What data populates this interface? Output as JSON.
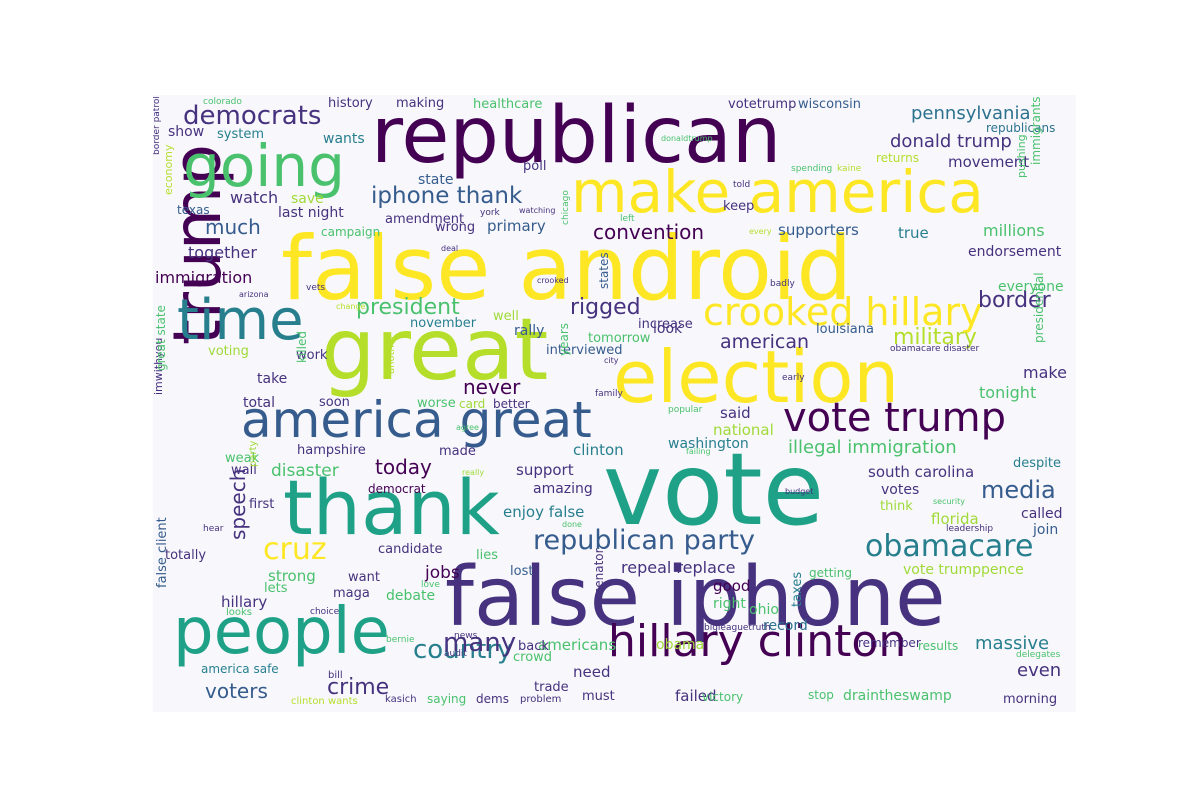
{
  "cloud": {
    "colors": [
      "#440154",
      "#46327e",
      "#365c8d",
      "#277f8e",
      "#1fa187",
      "#4ac16d",
      "#a0da39",
      "#fde725",
      "#2c728e",
      "#3b528b",
      "#5ec962",
      "#b5de2b"
    ],
    "words": [
      {
        "text": "false android",
        "color": "#fde725"
      },
      {
        "text": "republican",
        "color": "#440154"
      },
      {
        "text": "vote",
        "color": "#1fa187"
      },
      {
        "text": "false iphone",
        "color": "#46327e"
      },
      {
        "text": "great",
        "color": "#b5de2b"
      },
      {
        "text": "election",
        "color": "#fde725"
      },
      {
        "text": "thank",
        "color": "#1fa187"
      },
      {
        "text": "trump",
        "color": "#440154"
      },
      {
        "text": "make america",
        "color": "#fde725"
      },
      {
        "text": "people",
        "color": "#1fa187"
      },
      {
        "text": "going",
        "color": "#4ac16d"
      },
      {
        "text": "time",
        "color": "#277f8e"
      },
      {
        "text": "america great",
        "color": "#365c8d"
      },
      {
        "text": "hillary clinton",
        "color": "#440154"
      },
      {
        "text": "vote trump",
        "color": "#440154"
      },
      {
        "text": "crooked hillary",
        "color": "#fde725"
      },
      {
        "text": "obamacare",
        "color": "#277f8e"
      },
      {
        "text": "republican party",
        "color": "#365c8d"
      },
      {
        "text": "cruz",
        "color": "#fde725"
      },
      {
        "text": "democrats",
        "color": "#46327e"
      },
      {
        "text": "country",
        "color": "#277f8e"
      },
      {
        "text": "media",
        "color": "#365c8d"
      },
      {
        "text": "many",
        "color": "#46327e"
      },
      {
        "text": "iphone thank",
        "color": "#365c8d"
      },
      {
        "text": "military",
        "color": "#b5de2b"
      },
      {
        "text": "crime",
        "color": "#46327e"
      },
      {
        "text": "today",
        "color": "#440154"
      },
      {
        "text": "president",
        "color": "#4ac16d"
      },
      {
        "text": "illegal immigration",
        "color": "#4ac16d"
      },
      {
        "text": "pennsylvania",
        "color": "#2c728e"
      },
      {
        "text": "convention",
        "color": "#440154"
      },
      {
        "text": "much",
        "color": "#365c8d"
      },
      {
        "text": "donald trump",
        "color": "#46327e"
      },
      {
        "text": "border",
        "color": "#46327e"
      },
      {
        "text": "rigged",
        "color": "#46327e"
      },
      {
        "text": "never",
        "color": "#440154"
      },
      {
        "text": "speech",
        "color": "#46327e"
      },
      {
        "text": "american",
        "color": "#46327e"
      },
      {
        "text": "voters",
        "color": "#365c8d"
      },
      {
        "text": "even",
        "color": "#46327e"
      },
      {
        "text": "massive",
        "color": "#277f8e"
      },
      {
        "text": "disaster",
        "color": "#4ac16d"
      },
      {
        "text": "jobs",
        "color": "#440154"
      },
      {
        "text": "immigration",
        "color": "#440154"
      },
      {
        "text": "together",
        "color": "#46327e"
      },
      {
        "text": "watch",
        "color": "#46327e"
      },
      {
        "text": "millions",
        "color": "#4ac16d"
      },
      {
        "text": "south carolina",
        "color": "#46327e"
      },
      {
        "text": "florida",
        "color": "#a0da39"
      },
      {
        "text": "tonight",
        "color": "#4ac16d"
      },
      {
        "text": "make",
        "color": "#46327e"
      },
      {
        "text": "repeal replace",
        "color": "#46327e"
      },
      {
        "text": "vote trumppence",
        "color": "#a0da39"
      },
      {
        "text": "enjoy false",
        "color": "#277f8e"
      },
      {
        "text": "strong",
        "color": "#4ac16d"
      },
      {
        "text": "hillary",
        "color": "#46327e"
      },
      {
        "text": "ohio",
        "color": "#4ac16d"
      },
      {
        "text": "record",
        "color": "#2c728e"
      },
      {
        "text": "need",
        "color": "#46327e"
      },
      {
        "text": "americans",
        "color": "#4ac16d"
      },
      {
        "text": "obama",
        "color": "#a0da39"
      },
      {
        "text": "good",
        "color": "#440154"
      },
      {
        "text": "right",
        "color": "#4ac16d"
      },
      {
        "text": "said",
        "color": "#46327e"
      },
      {
        "text": "national",
        "color": "#a0da39"
      },
      {
        "text": "washington",
        "color": "#277f8e"
      },
      {
        "text": "clinton",
        "color": "#277f8e"
      },
      {
        "text": "support",
        "color": "#46327e"
      },
      {
        "text": "amazing",
        "color": "#46327e"
      },
      {
        "text": "votes",
        "color": "#46327e"
      },
      {
        "text": "think",
        "color": "#a0da39"
      },
      {
        "text": "called",
        "color": "#46327e"
      },
      {
        "text": "join",
        "color": "#365c8d"
      },
      {
        "text": "despite",
        "color": "#277f8e"
      },
      {
        "text": "supporters",
        "color": "#365c8d"
      },
      {
        "text": "true",
        "color": "#277f8e"
      },
      {
        "text": "endorsement",
        "color": "#46327e"
      },
      {
        "text": "everyone",
        "color": "#4ac16d"
      },
      {
        "text": "movement",
        "color": "#46327e"
      },
      {
        "text": "primary",
        "color": "#365c8d"
      },
      {
        "text": "state",
        "color": "#365c8d"
      },
      {
        "text": "last night",
        "color": "#46327e"
      },
      {
        "text": "save",
        "color": "#a0da39"
      },
      {
        "text": "wants",
        "color": "#277f8e"
      },
      {
        "text": "show",
        "color": "#46327e"
      },
      {
        "text": "system",
        "color": "#277f8e"
      },
      {
        "text": "history",
        "color": "#46327e"
      },
      {
        "text": "making",
        "color": "#46327e"
      },
      {
        "text": "healthcare",
        "color": "#4ac16d"
      },
      {
        "text": "votetrump",
        "color": "#46327e"
      },
      {
        "text": "wisconsin",
        "color": "#365c8d"
      },
      {
        "text": "republicans",
        "color": "#2c728e"
      },
      {
        "text": "returns",
        "color": "#b5de2b"
      },
      {
        "text": "poll",
        "color": "#46327e"
      },
      {
        "text": "keep",
        "color": "#46327e"
      },
      {
        "text": "wrong",
        "color": "#46327e"
      },
      {
        "text": "amendment",
        "color": "#46327e"
      },
      {
        "text": "campaign",
        "color": "#4ac16d"
      },
      {
        "text": "texas",
        "color": "#365c8d"
      },
      {
        "text": "look",
        "color": "#46327e"
      },
      {
        "text": "rally",
        "color": "#365c8d"
      },
      {
        "text": "increase",
        "color": "#46327e"
      },
      {
        "text": "louisiana",
        "color": "#365c8d"
      },
      {
        "text": "november",
        "color": "#277f8e"
      },
      {
        "text": "tomorrow",
        "color": "#4ac16d"
      },
      {
        "text": "interviewed",
        "color": "#365c8d"
      },
      {
        "text": "well",
        "color": "#a0da39"
      },
      {
        "text": "voting",
        "color": "#a0da39"
      },
      {
        "text": "work",
        "color": "#46327e"
      },
      {
        "text": "take",
        "color": "#46327e"
      },
      {
        "text": "total",
        "color": "#46327e"
      },
      {
        "text": "soon",
        "color": "#46327e"
      },
      {
        "text": "worse",
        "color": "#4ac16d"
      },
      {
        "text": "card",
        "color": "#a0da39"
      },
      {
        "text": "better",
        "color": "#46327e"
      },
      {
        "text": "hampshire",
        "color": "#46327e"
      },
      {
        "text": "made",
        "color": "#46327e"
      },
      {
        "text": "weak",
        "color": "#4ac16d"
      },
      {
        "text": "wall",
        "color": "#46327e"
      },
      {
        "text": "democrat",
        "color": "#440154"
      },
      {
        "text": "first",
        "color": "#46327e"
      },
      {
        "text": "candidate",
        "color": "#46327e"
      },
      {
        "text": "lies",
        "color": "#4ac16d"
      },
      {
        "text": "totally",
        "color": "#46327e"
      },
      {
        "text": "want",
        "color": "#46327e"
      },
      {
        "text": "lost",
        "color": "#365c8d"
      },
      {
        "text": "maga",
        "color": "#46327e"
      },
      {
        "text": "lets",
        "color": "#4ac16d"
      },
      {
        "text": "debate",
        "color": "#4ac16d"
      },
      {
        "text": "getting",
        "color": "#4ac16d"
      },
      {
        "text": "remember",
        "color": "#46327e"
      },
      {
        "text": "results",
        "color": "#4ac16d"
      },
      {
        "text": "america safe",
        "color": "#277f8e"
      },
      {
        "text": "back",
        "color": "#46327e"
      },
      {
        "text": "crowd",
        "color": "#4ac16d"
      },
      {
        "text": "trade",
        "color": "#46327e"
      },
      {
        "text": "must",
        "color": "#46327e"
      },
      {
        "text": "failed",
        "color": "#46327e"
      },
      {
        "text": "victory",
        "color": "#4ac16d"
      },
      {
        "text": "stop",
        "color": "#4ac16d"
      },
      {
        "text": "draintheswamp",
        "color": "#4ac16d"
      },
      {
        "text": "morning",
        "color": "#46327e"
      },
      {
        "text": "dems",
        "color": "#46327e"
      },
      {
        "text": "saying",
        "color": "#4ac16d"
      },
      {
        "text": "problem",
        "color": "#46327e"
      },
      {
        "text": "kasich",
        "color": "#46327e"
      },
      {
        "text": "clinton wants",
        "color": "#b5de2b"
      },
      {
        "text": "bill",
        "color": "#46327e"
      },
      {
        "text": "audit",
        "color": "#46327e"
      },
      {
        "text": "bernie",
        "color": "#4ac16d"
      },
      {
        "text": "news",
        "color": "#46327e"
      },
      {
        "text": "love",
        "color": "#4ac16d"
      },
      {
        "text": "choice",
        "color": "#46327e"
      },
      {
        "text": "looks",
        "color": "#4ac16d"
      },
      {
        "text": "bigleaguetruth",
        "color": "#46327e"
      },
      {
        "text": "delegates",
        "color": "#4ac16d"
      },
      {
        "text": "colorado",
        "color": "#4ac16d"
      },
      {
        "text": "donaldtrump",
        "color": "#4ac16d"
      },
      {
        "text": "spending",
        "color": "#4ac16d"
      },
      {
        "text": "kaine",
        "color": "#b5de2b"
      },
      {
        "text": "told",
        "color": "#46327e"
      },
      {
        "text": "york",
        "color": "#46327e"
      },
      {
        "text": "watching",
        "color": "#46327e"
      },
      {
        "text": "left",
        "color": "#4ac16d"
      },
      {
        "text": "every",
        "color": "#b5de2b"
      },
      {
        "text": "deal",
        "color": "#46327e"
      },
      {
        "text": "crooked",
        "color": "#46327e"
      },
      {
        "text": "badly",
        "color": "#46327e"
      },
      {
        "text": "arizona",
        "color": "#46327e"
      },
      {
        "text": "vets",
        "color": "#46327e"
      },
      {
        "text": "change",
        "color": "#b5de2b"
      },
      {
        "text": "obamacare disaster",
        "color": "#46327e"
      },
      {
        "text": "early",
        "color": "#46327e"
      },
      {
        "text": "family",
        "color": "#46327e"
      },
      {
        "text": "city",
        "color": "#46327e"
      },
      {
        "text": "popular",
        "color": "#4ac16d"
      },
      {
        "text": "agree",
        "color": "#4ac16d"
      },
      {
        "text": "really",
        "color": "#a0da39"
      },
      {
        "text": "failing",
        "color": "#4ac16d"
      },
      {
        "text": "budget",
        "color": "#46327e"
      },
      {
        "text": "done",
        "color": "#4ac16d"
      },
      {
        "text": "security",
        "color": "#4ac16d"
      },
      {
        "text": "leadership",
        "color": "#46327e"
      },
      {
        "text": "hear",
        "color": "#46327e"
      },
      {
        "text": "border patrol",
        "color": "#46327e"
      },
      {
        "text": "economy",
        "color": "#b5de2b"
      },
      {
        "text": "imwithyou",
        "color": "#46327e"
      },
      {
        "text": "great state",
        "color": "#4ac16d"
      },
      {
        "text": "false client",
        "color": "#365c8d"
      },
      {
        "text": "party",
        "color": "#a0da39"
      },
      {
        "text": "killed",
        "color": "#4ac16d"
      },
      {
        "text": "another",
        "color": "#b5de2b"
      },
      {
        "text": "years",
        "color": "#4ac16d"
      },
      {
        "text": "chicago",
        "color": "#4ac16d"
      },
      {
        "text": "states",
        "color": "#365c8d"
      },
      {
        "text": "senator",
        "color": "#46327e"
      },
      {
        "text": "taxes",
        "color": "#277f8e"
      },
      {
        "text": "presidential",
        "color": "#4ac16d"
      },
      {
        "text": "immigrants",
        "color": "#4ac16d"
      },
      {
        "text": "pushing",
        "color": "#4ac16d"
      }
    ]
  }
}
